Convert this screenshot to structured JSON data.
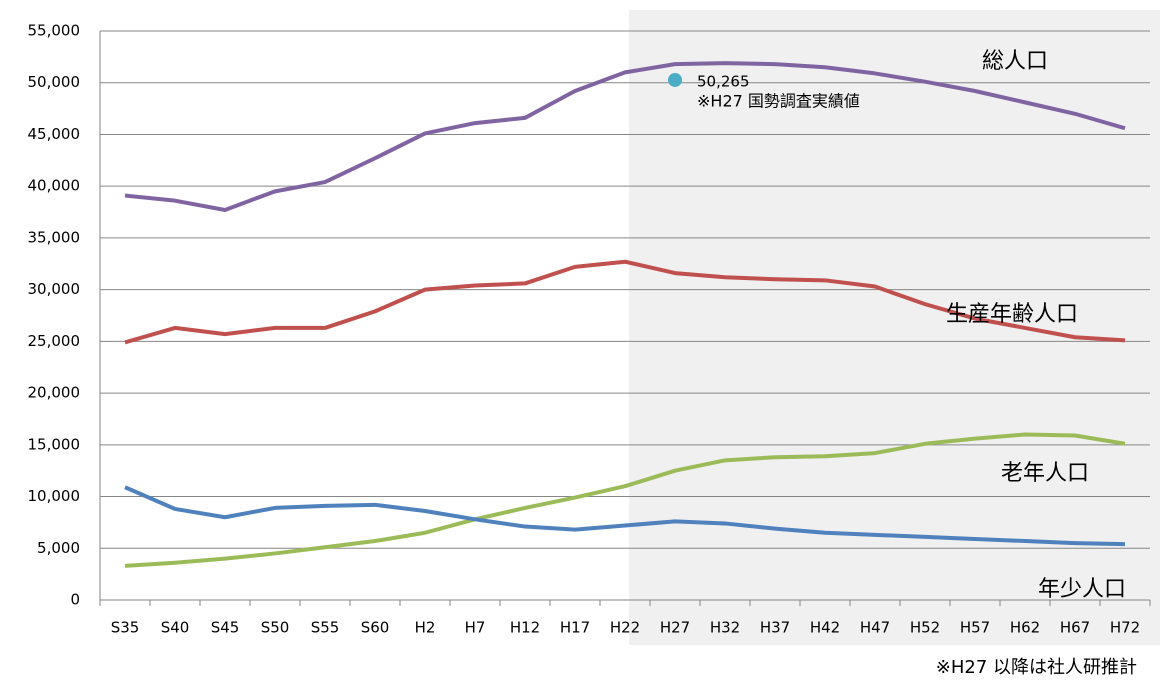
{
  "chart_data": {
    "type": "line",
    "categories": [
      "S35",
      "S40",
      "S45",
      "S50",
      "S55",
      "S60",
      "H2",
      "H7",
      "H12",
      "H17",
      "H22",
      "H27",
      "H32",
      "H37",
      "H42",
      "H47",
      "H52",
      "H57",
      "H62",
      "H67",
      "H72"
    ],
    "series": [
      {
        "name": "総人口",
        "color": "#8064a2",
        "values": [
          39100,
          38600,
          37700,
          39500,
          40400,
          42700,
          45100,
          46100,
          46600,
          49200,
          51000,
          51800,
          51900,
          51800,
          51500,
          50900,
          50100,
          49200,
          48100,
          47000,
          45600
        ]
      },
      {
        "name": "生産年齢人口",
        "color": "#c0504d",
        "values": [
          24900,
          26300,
          25700,
          26300,
          26300,
          27900,
          30000,
          30400,
          30600,
          32200,
          32700,
          31600,
          31200,
          31000,
          30900,
          30300,
          28600,
          27200,
          26300,
          25400,
          25100
        ]
      },
      {
        "name": "老年人口",
        "color": "#9bbb59",
        "values": [
          3300,
          3600,
          4000,
          4500,
          5100,
          5700,
          6500,
          7800,
          8900,
          9900,
          11000,
          12500,
          13500,
          13800,
          13900,
          14200,
          15100,
          15600,
          16000,
          15900,
          15100
        ]
      },
      {
        "name": "年少人口",
        "color": "#4f81bd",
        "values": [
          10900,
          8800,
          8000,
          8900,
          9100,
          9200,
          8600,
          7800,
          7100,
          6800,
          7200,
          7600,
          7400,
          6900,
          6500,
          6300,
          6100,
          5900,
          5700,
          5500,
          5400
        ]
      }
    ],
    "annotation_point": {
      "x": "H27",
      "value": 50265,
      "value_label": "50,265",
      "note": "※H27 国勢調査実績値",
      "color": "#4bacc6"
    },
    "footnote": "※H27 以降は社人研推計",
    "ylim": [
      0,
      55000
    ],
    "yticks": [
      0,
      {
        "value": 5000,
        "label": "5,000"
      },
      {
        "value": 10000,
        "label": "10,000"
      },
      {
        "value": 15000,
        "label": "15,000"
      },
      {
        "value": 20000,
        "label": "20,000"
      },
      {
        "value": 25000,
        "label": "25,000"
      },
      {
        "value": 30000,
        "label": "30,000"
      },
      {
        "value": 35000,
        "label": "35,000"
      },
      {
        "value": 40000,
        "label": "40,000"
      },
      {
        "value": 45000,
        "label": "45,000"
      },
      {
        "value": 50000,
        "label": "50,000"
      },
      {
        "value": 55000,
        "label": "55,000"
      }
    ],
    "grid": true
  }
}
